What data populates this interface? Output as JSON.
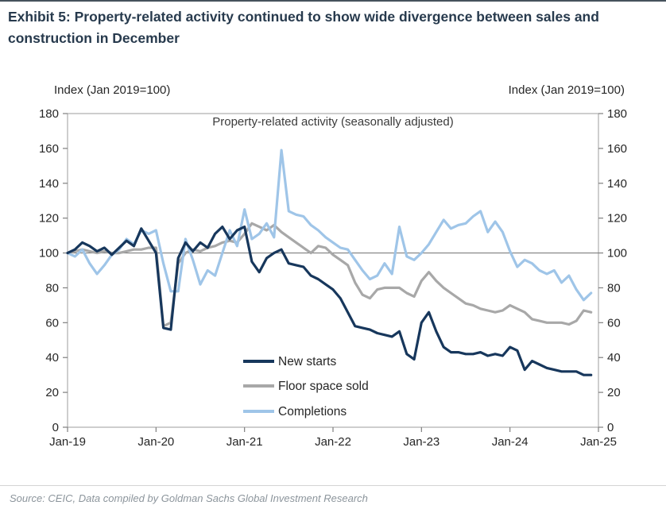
{
  "header": {
    "title": "Exhibit 5: Property-related activity continued to show wide divergence between sales and construction in December"
  },
  "footer": {
    "source": "Source: CEIC, Data compiled by Goldman Sachs Global Investment Research"
  },
  "chart_data": {
    "type": "line",
    "title": "Property-related activity  (seasonally adjusted)",
    "left_axis_label": "Index (Jan 2019=100)",
    "right_axis_label": "Index (Jan 2019=100)",
    "ylim": [
      0,
      180
    ],
    "y_ticks": [
      0,
      20,
      40,
      60,
      80,
      100,
      120,
      140,
      160,
      180
    ],
    "reference_line": 100,
    "x_tick_labels": [
      "Jan-19",
      "Jan-20",
      "Jan-21",
      "Jan-22",
      "Jan-23",
      "Jan-24",
      "Jan-25"
    ],
    "x_start": "Jan-2019",
    "x_end_of_data": "Dec-2024",
    "x_total_months": 72,
    "grid": "off",
    "legend_position": "inside-bottom-center",
    "axis_color": "#adadad",
    "tick_color": "#7f7f7f",
    "series": [
      {
        "name": "New starts",
        "color": "#17375c",
        "values": [
          100,
          102,
          106,
          104,
          101,
          103,
          99,
          103,
          107,
          104,
          114,
          107,
          100,
          57,
          56,
          97,
          106,
          101,
          106,
          103,
          111,
          115,
          108,
          113,
          115,
          95,
          89,
          97,
          100,
          102,
          94,
          93,
          92,
          87,
          85,
          82,
          79,
          74,
          66,
          58,
          57,
          56,
          54,
          53,
          52,
          55,
          42,
          39,
          60,
          66,
          55,
          46,
          43,
          43,
          42,
          42,
          43,
          41,
          42,
          41,
          46,
          44,
          33,
          38,
          36,
          34,
          33,
          32,
          32,
          32,
          30,
          30
        ]
      },
      {
        "name": "Floor space sold",
        "color": "#a8a8a8",
        "values": [
          100,
          101,
          102,
          101,
          100,
          101,
          100,
          100,
          101,
          102,
          102,
          103,
          103,
          58,
          60,
          94,
          100,
          102,
          101,
          103,
          104,
          106,
          107,
          106,
          111,
          117,
          115,
          113,
          116,
          112,
          109,
          106,
          103,
          100,
          104,
          103,
          99,
          96,
          93,
          83,
          76,
          74,
          79,
          80,
          80,
          80,
          77,
          75,
          84,
          89,
          84,
          80,
          77,
          74,
          71,
          70,
          68,
          67,
          66,
          67,
          70,
          68,
          66,
          62,
          61,
          60,
          60,
          60,
          59,
          61,
          67,
          66
        ]
      },
      {
        "name": "Completions",
        "color": "#9fc5e8",
        "values": [
          100,
          98,
          102,
          94,
          88,
          93,
          99,
          102,
          108,
          105,
          113,
          111,
          113,
          94,
          78,
          78,
          108,
          96,
          82,
          90,
          87,
          100,
          113,
          104,
          125,
          108,
          111,
          117,
          109,
          159,
          124,
          122,
          121,
          116,
          113,
          109,
          106,
          103,
          102,
          96,
          90,
          85,
          87,
          94,
          88,
          115,
          98,
          96,
          100,
          105,
          112,
          119,
          114,
          116,
          117,
          121,
          124,
          112,
          118,
          112,
          101,
          92,
          96,
          94,
          90,
          88,
          90,
          83,
          87,
          79,
          73,
          77
        ]
      }
    ]
  }
}
